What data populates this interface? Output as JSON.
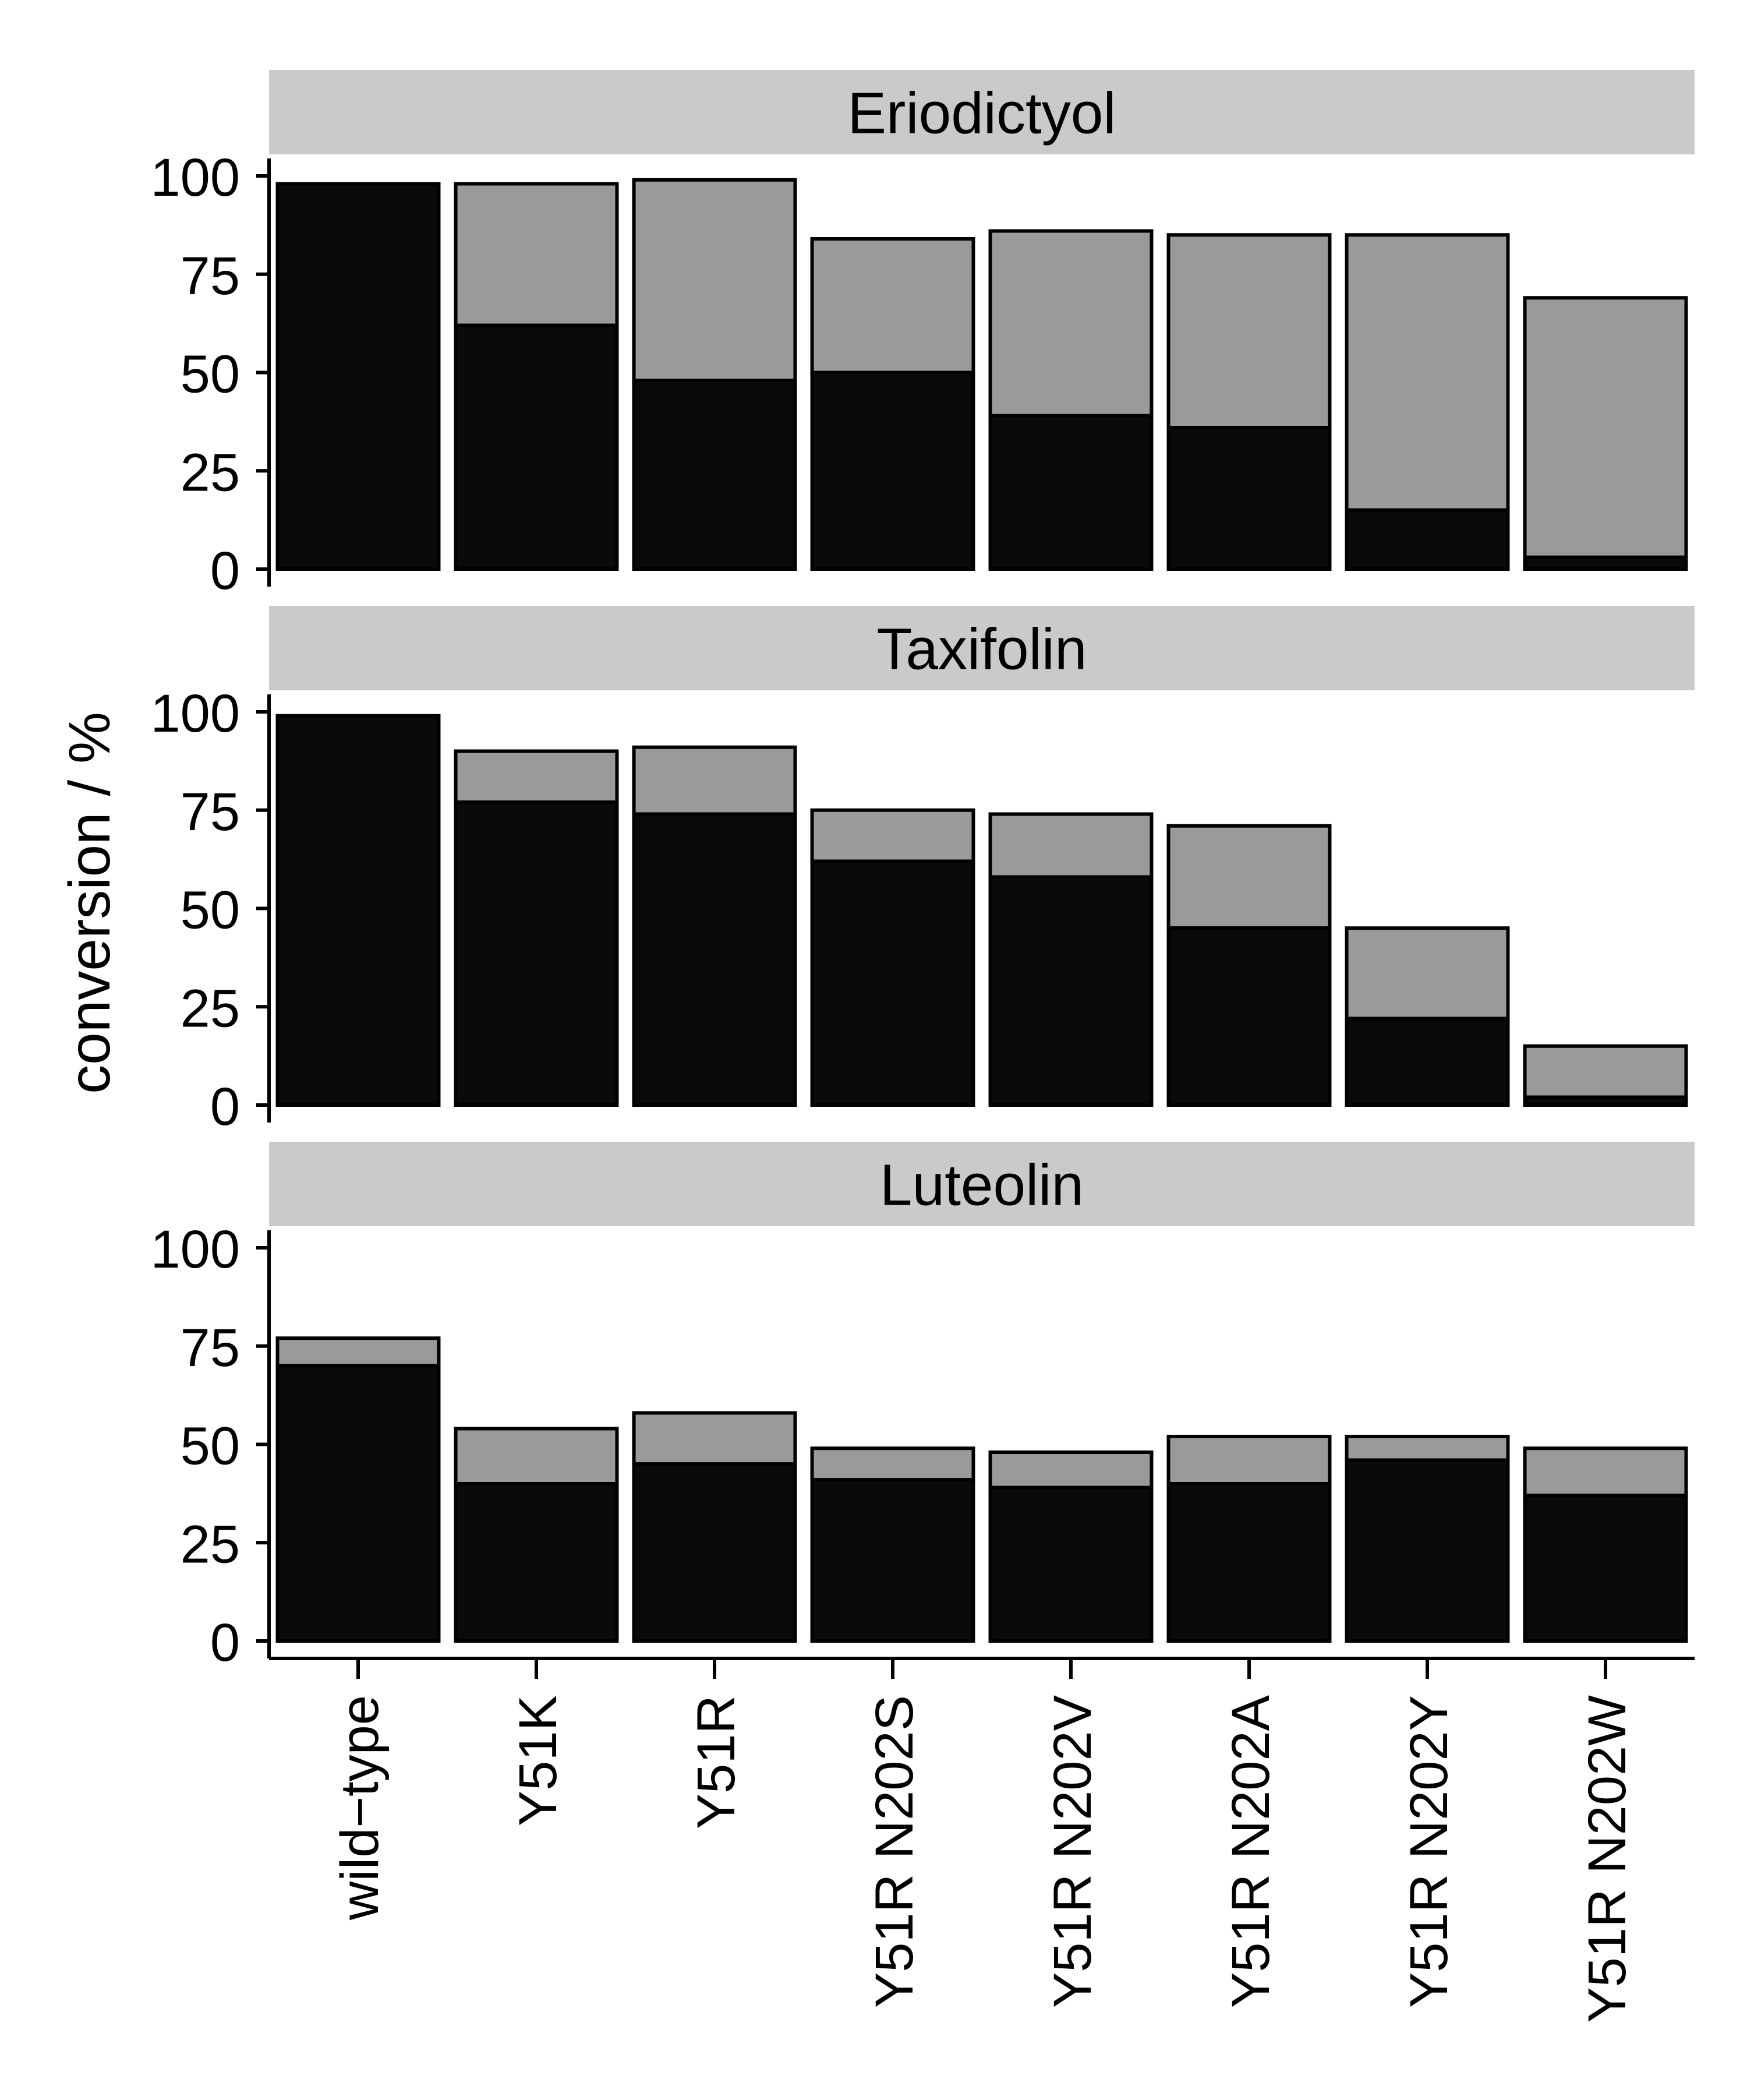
{
  "chart_data": {
    "type": "bar",
    "stacked": true,
    "ylabel": "conversion / %",
    "xlabel": "",
    "ylim": [
      0,
      100
    ],
    "yticks": [
      0,
      25,
      50,
      75,
      100
    ],
    "legend": "none",
    "grid": false,
    "categories": [
      "wild−type",
      "Y51K",
      "Y51R",
      "Y51R N202S",
      "Y51R N202V",
      "Y51R N202A",
      "Y51R N202Y",
      "Y51R N202W"
    ],
    "colors": {
      "bottom": "#0a0a0a",
      "top": "#9a9a9a",
      "strip": "#cacaca"
    },
    "facets": [
      {
        "label": "Eriodictyol",
        "bottom": [
          98,
          62,
          48,
          50,
          39,
          36,
          15,
          3
        ],
        "total": [
          98,
          98,
          99,
          84,
          86,
          85,
          85,
          69
        ]
      },
      {
        "label": "Taxifolin",
        "bottom": [
          99,
          77,
          74,
          62,
          58,
          45,
          22,
          2
        ],
        "total": [
          99,
          90,
          91,
          75,
          74,
          71,
          45,
          15
        ]
      },
      {
        "label": "Luteolin",
        "bottom": [
          70,
          40,
          45,
          41,
          39,
          40,
          46,
          37
        ],
        "total": [
          77,
          54,
          58,
          49,
          48,
          52,
          52,
          49
        ]
      }
    ]
  }
}
